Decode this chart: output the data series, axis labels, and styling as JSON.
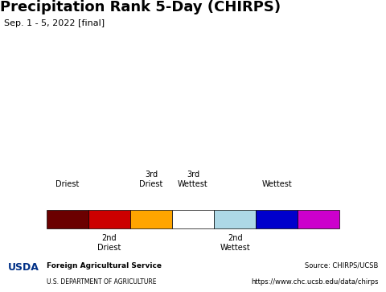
{
  "title": "Precipitation Rank 5-Day (CHIRPS)",
  "subtitle": "Sep. 1 - 5, 2022 [final]",
  "title_fontsize": 13,
  "subtitle_fontsize": 8,
  "legend_colors": [
    "#6B0000",
    "#CC0000",
    "#FFA500",
    "#FFFFFF",
    "#ADD8E6",
    "#0000CC",
    "#CC00CC"
  ],
  "legend_labels_top": [
    "Driest",
    "",
    "3rd\nDriest",
    "3rd\nWettest",
    "",
    "Wettest",
    ""
  ],
  "legend_labels_bottom": [
    "",
    "2nd\nDriest",
    "",
    "",
    "2nd\nWettest",
    "",
    ""
  ],
  "legend_label_positions_top": [
    0,
    2,
    3,
    5,
    6
  ],
  "footer_left_line1": "Foreign Agricultural Service",
  "footer_left_line2": "U.S. DEPARTMENT OF AGRICULTURE",
  "footer_right_line1": "Source: CHIRPS/UCSB",
  "footer_right_line2": "https://www.chc.ucsb.edu/data/chirps",
  "map_bg_color": "#87CEEB",
  "land_color": "#FFFFFF",
  "footer_bg_color": "#E8E8E8",
  "usda_text_color": "#003087",
  "footer_text_color": "#000000"
}
